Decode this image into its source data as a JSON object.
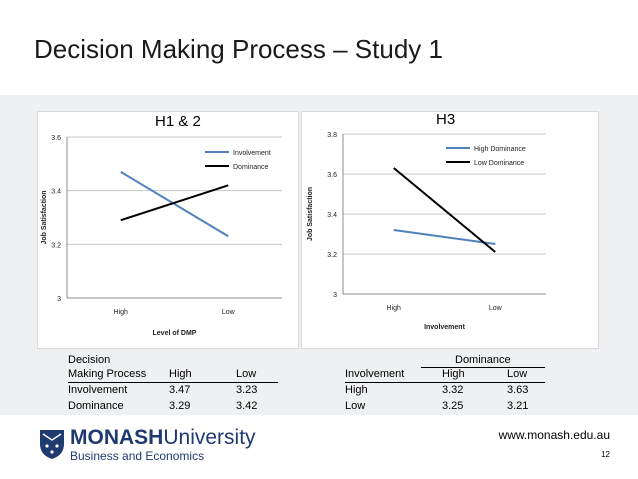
{
  "slide": {
    "title": "Decision Making Process – Study 1",
    "url": "www.monash.edu.au",
    "page_number": "12",
    "logo_text_main": "MONASH",
    "logo_text_sub": "University",
    "logo_text_faculty": "Business and Economics"
  },
  "colors": {
    "blue": "#4f81bd",
    "black": "#000000",
    "band": "#eef0f1"
  },
  "chart_data": [
    {
      "type": "line",
      "title": "H1 & 2",
      "xlabel": "Level of DMP",
      "ylabel": "Job Satisfaction",
      "categories": [
        "High",
        "Low"
      ],
      "ylim": [
        3,
        3.6
      ],
      "yticks": [
        "3",
        "3.2",
        "3.4",
        "3.6"
      ],
      "grid": true,
      "legend": "top-right",
      "series": [
        {
          "name": "Involvement",
          "values": [
            3.47,
            3.23
          ],
          "color": "#4f81bd"
        },
        {
          "name": "Dominance",
          "values": [
            3.29,
            3.42
          ],
          "color": "#000000"
        }
      ]
    },
    {
      "type": "line",
      "title": "H3",
      "xlabel": "Involvement",
      "ylabel": "Job Satisfaction",
      "categories": [
        "High",
        "Low"
      ],
      "ylim": [
        3,
        3.8
      ],
      "yticks": [
        "3",
        "3.2",
        "3.4",
        "3.6",
        "3.8"
      ],
      "grid": true,
      "legend": "top-right",
      "series": [
        {
          "name": "High Dominance",
          "values": [
            3.32,
            3.25
          ],
          "color": "#4f81bd"
        },
        {
          "name": "Low Dominance",
          "values": [
            3.63,
            3.21
          ],
          "color": "#000000"
        }
      ]
    }
  ],
  "table1": {
    "header_line1": "Decision",
    "header_line2": "Making Process",
    "col_high": "High",
    "col_low": "Low",
    "rows": [
      {
        "label": "Involvement",
        "high": "3.47",
        "low": "3.23"
      },
      {
        "label": "Dominance",
        "high": "3.29",
        "low": "3.42"
      }
    ]
  },
  "table2": {
    "group_header": "Dominance",
    "row_header": "Involvement",
    "col_high": "High",
    "col_low": "Low",
    "rows": [
      {
        "label": "High",
        "high": "3.32",
        "low": "3.63"
      },
      {
        "label": "Low",
        "high": "3.25",
        "low": "3.21"
      }
    ]
  }
}
